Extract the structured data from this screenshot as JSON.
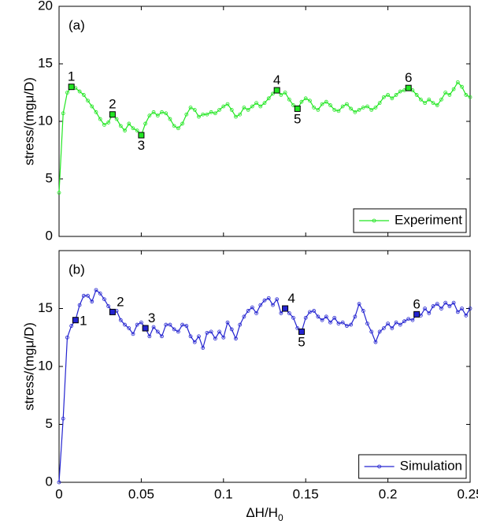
{
  "chart_data": [
    {
      "type": "line",
      "panel_label": "(a)",
      "ylabel": "stress/(mgμ/D)",
      "xlim": [
        0,
        0.25
      ],
      "xticks": [
        0,
        0.05,
        0.1,
        0.15,
        0.2,
        0.25
      ],
      "ylim": [
        0,
        20
      ],
      "yticks": [
        0,
        5,
        10,
        15,
        20
      ],
      "legend": "lower right",
      "x": [
        0,
        0.0025,
        0.005,
        0.0075,
        0.01,
        0.0125,
        0.015,
        0.0175,
        0.02,
        0.0225,
        0.025,
        0.0275,
        0.03,
        0.0325,
        0.035,
        0.0375,
        0.04,
        0.0425,
        0.045,
        0.0475,
        0.05,
        0.0525,
        0.055,
        0.0575,
        0.06,
        0.0625,
        0.065,
        0.0675,
        0.07,
        0.0725,
        0.075,
        0.0775,
        0.08,
        0.0825,
        0.085,
        0.0875,
        0.09,
        0.0925,
        0.095,
        0.0975,
        0.1,
        0.1025,
        0.105,
        0.1075,
        0.11,
        0.1125,
        0.115,
        0.1175,
        0.12,
        0.1225,
        0.125,
        0.1275,
        0.13,
        0.1325,
        0.135,
        0.1375,
        0.14,
        0.1425,
        0.145,
        0.1475,
        0.15,
        0.1525,
        0.155,
        0.1575,
        0.16,
        0.1625,
        0.165,
        0.1675,
        0.17,
        0.1725,
        0.175,
        0.1775,
        0.18,
        0.1825,
        0.185,
        0.1875,
        0.19,
        0.1925,
        0.195,
        0.1975,
        0.2,
        0.2025,
        0.205,
        0.2075,
        0.21,
        0.2125,
        0.215,
        0.2175,
        0.22,
        0.2225,
        0.225,
        0.2275,
        0.23,
        0.2325,
        0.235,
        0.2375,
        0.24,
        0.2425,
        0.245,
        0.2475,
        0.25
      ],
      "series": [
        {
          "name": "Experiment",
          "color": "#22e622",
          "values": [
            3.8,
            10.7,
            12.5,
            13.0,
            12.9,
            12.6,
            12.3,
            11.8,
            11.3,
            10.8,
            10.2,
            9.7,
            9.9,
            10.6,
            10.2,
            9.6,
            9.2,
            9.8,
            9.4,
            9.2,
            8.8,
            9.8,
            10.5,
            10.8,
            10.5,
            10.8,
            10.7,
            10.2,
            9.6,
            9.4,
            9.8,
            10.6,
            11.2,
            11.0,
            10.4,
            10.6,
            10.6,
            10.8,
            10.7,
            11.0,
            11.3,
            11.5,
            11.0,
            10.4,
            10.6,
            11.2,
            11.0,
            11.3,
            11.6,
            11.3,
            11.6,
            12.0,
            12.4,
            12.7,
            12.3,
            12.5,
            11.9,
            11.4,
            11.1,
            11.7,
            12.0,
            11.8,
            11.2,
            11.0,
            11.5,
            11.7,
            11.4,
            11.0,
            10.9,
            11.3,
            11.5,
            11.1,
            10.8,
            11.0,
            11.2,
            11.3,
            11.0,
            11.2,
            11.6,
            12.1,
            12.3,
            12.0,
            12.3,
            12.6,
            12.7,
            12.9,
            12.7,
            12.3,
            11.9,
            11.6,
            11.9,
            11.6,
            11.4,
            11.9,
            12.5,
            12.3,
            12.8,
            13.4,
            13.0,
            12.3,
            12.1
          ]
        }
      ],
      "annotations": [
        {
          "text": "1",
          "x": 0.0075,
          "y": 13.0
        },
        {
          "text": "2",
          "x": 0.0325,
          "y": 10.6
        },
        {
          "text": "3",
          "x": 0.05,
          "y": 8.8
        },
        {
          "text": "4",
          "x": 0.1325,
          "y": 12.7
        },
        {
          "text": "5",
          "x": 0.145,
          "y": 11.1
        },
        {
          "text": "6",
          "x": 0.2125,
          "y": 12.9
        }
      ]
    },
    {
      "type": "line",
      "panel_label": "(b)",
      "ylabel": "stress/(mgμ/D)",
      "xlabel": {
        "text": "ΔH/H",
        "subscript": "0"
      },
      "xlim": [
        0,
        0.25
      ],
      "xticks": [
        0,
        0.05,
        0.1,
        0.15,
        0.2,
        0.25
      ],
      "ylim": [
        0,
        20
      ],
      "yticks": [
        0,
        5,
        10,
        15
      ],
      "legend": "lower right",
      "x": [
        0,
        0.0025,
        0.005,
        0.0075,
        0.01,
        0.0125,
        0.015,
        0.0175,
        0.02,
        0.0225,
        0.025,
        0.0275,
        0.03,
        0.0325,
        0.035,
        0.0375,
        0.04,
        0.0425,
        0.045,
        0.0475,
        0.05,
        0.0525,
        0.055,
        0.0575,
        0.06,
        0.0625,
        0.065,
        0.0675,
        0.07,
        0.0725,
        0.075,
        0.0775,
        0.08,
        0.0825,
        0.085,
        0.0875,
        0.09,
        0.0925,
        0.095,
        0.0975,
        0.1,
        0.1025,
        0.105,
        0.1075,
        0.11,
        0.1125,
        0.115,
        0.1175,
        0.12,
        0.1225,
        0.125,
        0.1275,
        0.13,
        0.1325,
        0.135,
        0.1375,
        0.14,
        0.1425,
        0.145,
        0.1475,
        0.15,
        0.1525,
        0.155,
        0.1575,
        0.16,
        0.1625,
        0.165,
        0.1675,
        0.17,
        0.1725,
        0.175,
        0.1775,
        0.18,
        0.1825,
        0.185,
        0.1875,
        0.19,
        0.1925,
        0.195,
        0.1975,
        0.2,
        0.2025,
        0.205,
        0.2075,
        0.21,
        0.2125,
        0.215,
        0.2175,
        0.22,
        0.2225,
        0.225,
        0.2275,
        0.23,
        0.2325,
        0.235,
        0.2375,
        0.24,
        0.2425,
        0.245,
        0.2475,
        0.25
      ],
      "series": [
        {
          "name": "Simulation",
          "color": "#2424d0",
          "values": [
            0,
            5.5,
            12.5,
            13.5,
            14.0,
            15.3,
            16.1,
            16.1,
            15.6,
            16.6,
            16.3,
            15.8,
            15.2,
            14.7,
            14.8,
            14.0,
            13.6,
            13.3,
            12.8,
            13.6,
            13.8,
            13.3,
            12.6,
            13.4,
            13.0,
            12.6,
            13.6,
            13.6,
            13.2,
            13.0,
            13.6,
            13.5,
            12.6,
            12.1,
            12.6,
            11.6,
            12.9,
            13.0,
            12.4,
            13.0,
            12.5,
            13.8,
            13.2,
            12.4,
            13.6,
            14.3,
            14.8,
            15.1,
            14.6,
            15.3,
            15.7,
            15.9,
            15.3,
            15.8,
            14.6,
            15.0,
            14.6,
            14.2,
            13.3,
            13.0,
            14.2,
            14.7,
            14.8,
            14.3,
            14.0,
            14.3,
            13.8,
            14.2,
            13.7,
            13.8,
            13.5,
            13.6,
            14.3,
            15.4,
            14.8,
            13.7,
            13.0,
            12.1,
            13.0,
            13.3,
            13.7,
            13.3,
            13.8,
            13.6,
            13.9,
            14.1,
            14.0,
            14.5,
            14.4,
            15.0,
            14.6,
            15.2,
            15.4,
            15.0,
            15.5,
            15.2,
            15.5,
            14.7,
            15.0,
            14.4,
            15.0
          ]
        }
      ],
      "annotations": [
        {
          "text": "1",
          "x": 0.01,
          "y": 14.0
        },
        {
          "text": "2",
          "x": 0.0325,
          "y": 14.7
        },
        {
          "text": "3",
          "x": 0.0525,
          "y": 13.3
        },
        {
          "text": "4",
          "x": 0.1375,
          "y": 15.0
        },
        {
          "text": "5",
          "x": 0.1475,
          "y": 13.0
        },
        {
          "text": "6",
          "x": 0.2175,
          "y": 14.5
        }
      ]
    }
  ]
}
